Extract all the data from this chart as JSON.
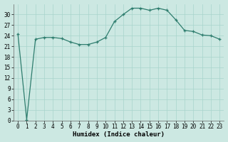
{
  "x": [
    0,
    1,
    2,
    3,
    4,
    5,
    6,
    7,
    8,
    9,
    10,
    11,
    12,
    13,
    14,
    15,
    16,
    17,
    18,
    19,
    20,
    21,
    22,
    23
  ],
  "y": [
    24.5,
    0.2,
    23.0,
    23.5,
    23.5,
    23.2,
    22.2,
    21.5,
    21.5,
    22.2,
    23.5,
    28.0,
    30.0,
    31.8,
    31.8,
    31.2,
    31.8,
    31.2,
    28.5,
    25.5,
    25.2,
    24.2,
    24.0,
    23.0
  ],
  "xlabel": "Humidex (Indice chaleur)",
  "line_color": "#2e7d6e",
  "marker": "+",
  "bg_color": "#cce8e2",
  "grid_color": "#a8d4cc",
  "xlim": [
    -0.5,
    23.5
  ],
  "ylim": [
    0,
    33
  ],
  "yticks": [
    0,
    3,
    6,
    9,
    12,
    15,
    18,
    21,
    24,
    27,
    30
  ],
  "xticks": [
    0,
    1,
    2,
    3,
    4,
    5,
    6,
    7,
    8,
    9,
    10,
    11,
    12,
    13,
    14,
    15,
    16,
    17,
    18,
    19,
    20,
    21,
    22,
    23
  ],
  "tick_fontsize": 5.5,
  "xlabel_fontsize": 6.5
}
